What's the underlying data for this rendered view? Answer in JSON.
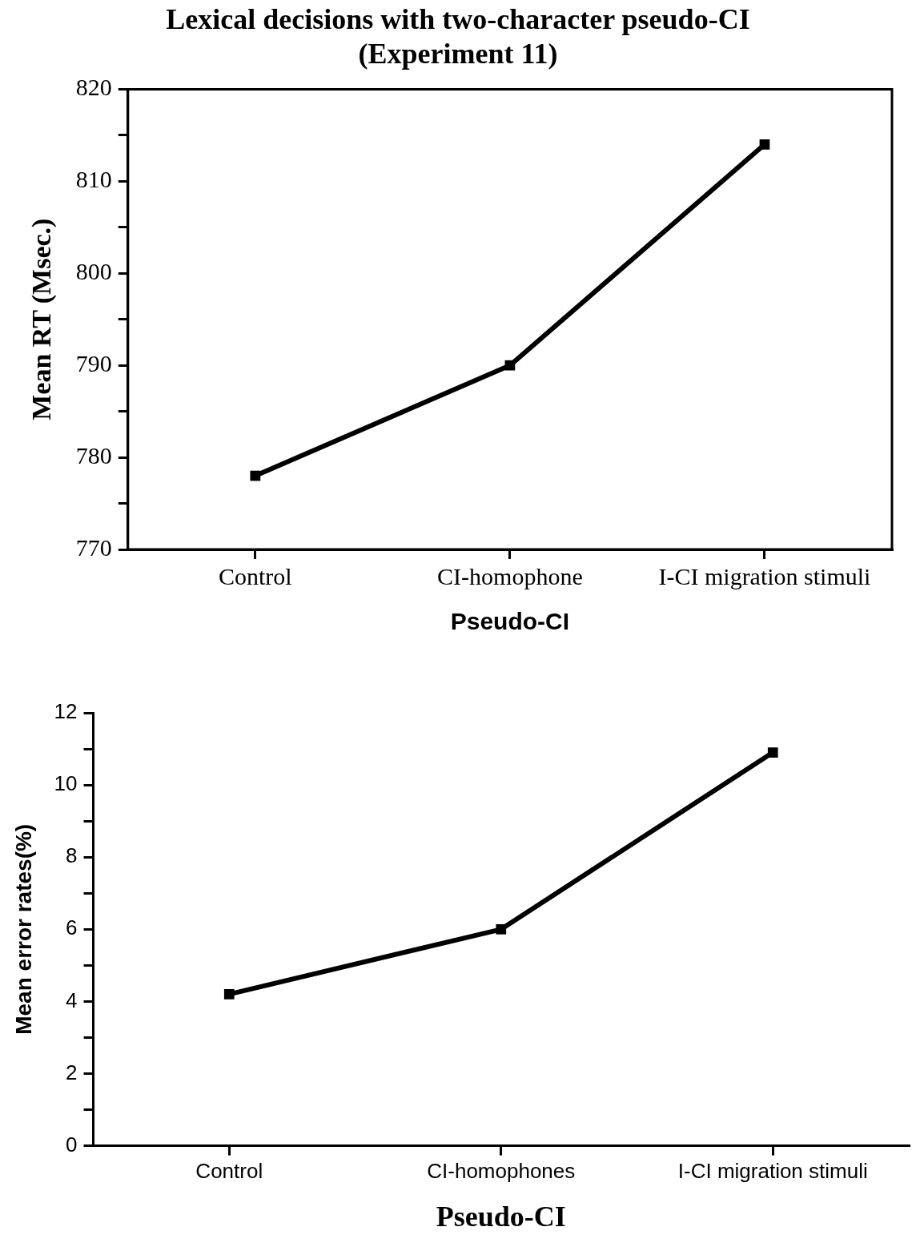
{
  "chart_data": [
    {
      "type": "line",
      "title": "Lexical decisions with two-character pseudo-CI\n(Experiment 11)",
      "xlabel": "Pseudo-CI",
      "ylabel": "Mean RT (Msec.)",
      "categories": [
        "Control",
        "CI-homophone",
        "I-CI migration stimuli"
      ],
      "values": [
        778,
        790,
        814
      ],
      "color": "#000000",
      "marker": "square",
      "ylim": [
        770,
        820
      ],
      "yticks": [
        770,
        {
          "value": 775,
          "label": null
        },
        780,
        {
          "value": 785,
          "label": null
        },
        790,
        {
          "value": 795,
          "label": null
        },
        800,
        {
          "value": 805,
          "label": null
        },
        810,
        {
          "value": 815,
          "label": null
        },
        820
      ]
    },
    {
      "type": "line",
      "xlabel": "Pseudo-CI",
      "ylabel": "Mean error rates(%)",
      "categories": [
        "Control",
        "CI-homophones",
        "I-CI migration stimuli"
      ],
      "values": [
        4.2,
        6.0,
        10.9
      ],
      "color": "#000000",
      "marker": "square",
      "ylim": [
        0,
        12
      ],
      "yticks": [
        0,
        {
          "value": 1,
          "label": null
        },
        2,
        {
          "value": 3,
          "label": null
        },
        4,
        {
          "value": 5,
          "label": null
        },
        6,
        {
          "value": 7,
          "label": null
        },
        8,
        {
          "value": 9,
          "label": null
        },
        10,
        {
          "value": 11,
          "label": null
        },
        12
      ]
    }
  ]
}
